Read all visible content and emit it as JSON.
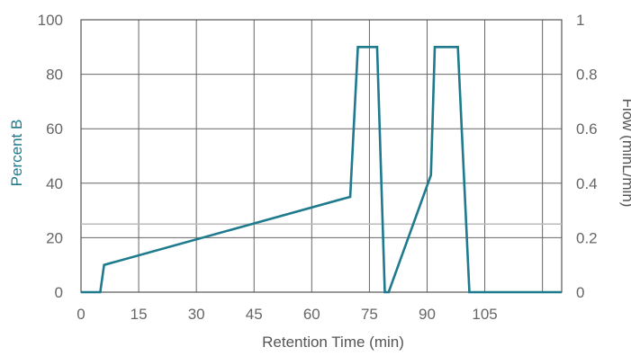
{
  "chart_data": {
    "type": "line",
    "title": "",
    "xlabel": "Retention Time (min)",
    "ylabel_left": "Percent B",
    "ylabel_right": "Flow (minL/min)",
    "xlim": [
      0,
      125
    ],
    "ylim_left": [
      0,
      100
    ],
    "ylim_right": [
      0,
      1
    ],
    "x_ticks": [
      "0",
      "15",
      "30",
      "45",
      "60",
      "75",
      "90",
      "105"
    ],
    "x_tick_values": [
      0,
      15,
      30,
      45,
      60,
      75,
      90,
      105
    ],
    "x_grid_values": [
      0,
      15,
      30,
      45,
      60,
      75,
      90,
      105,
      120
    ],
    "y_ticks_left": [
      "0",
      "20",
      "40",
      "60",
      "80",
      "100"
    ],
    "y_tick_values_left": [
      0,
      20,
      40,
      60,
      80,
      100
    ],
    "y_ticks_right": [
      "0",
      "0.2",
      "0.4",
      "0.6",
      "0.8",
      "1"
    ],
    "y_tick_values_right": [
      0,
      0.2,
      0.4,
      0.6,
      0.8,
      1
    ],
    "grid": true,
    "colors": {
      "series": "#1e7a8c",
      "flow": "#bbbbbb",
      "grid": "#666666",
      "frame": "#555555"
    },
    "series": [
      {
        "x": [
          0,
          5,
          6,
          70,
          72,
          77,
          79,
          80,
          91,
          92,
          98,
          101,
          102,
          114,
          115,
          125
        ],
        "y": [
          0,
          0,
          10,
          35,
          90,
          90,
          0,
          0,
          43,
          90,
          90,
          0,
          0,
          0,
          0,
          0
        ]
      }
    ],
    "flow_series": {
      "x": [
        0,
        125
      ],
      "y": [
        0.25,
        0.25
      ]
    }
  }
}
